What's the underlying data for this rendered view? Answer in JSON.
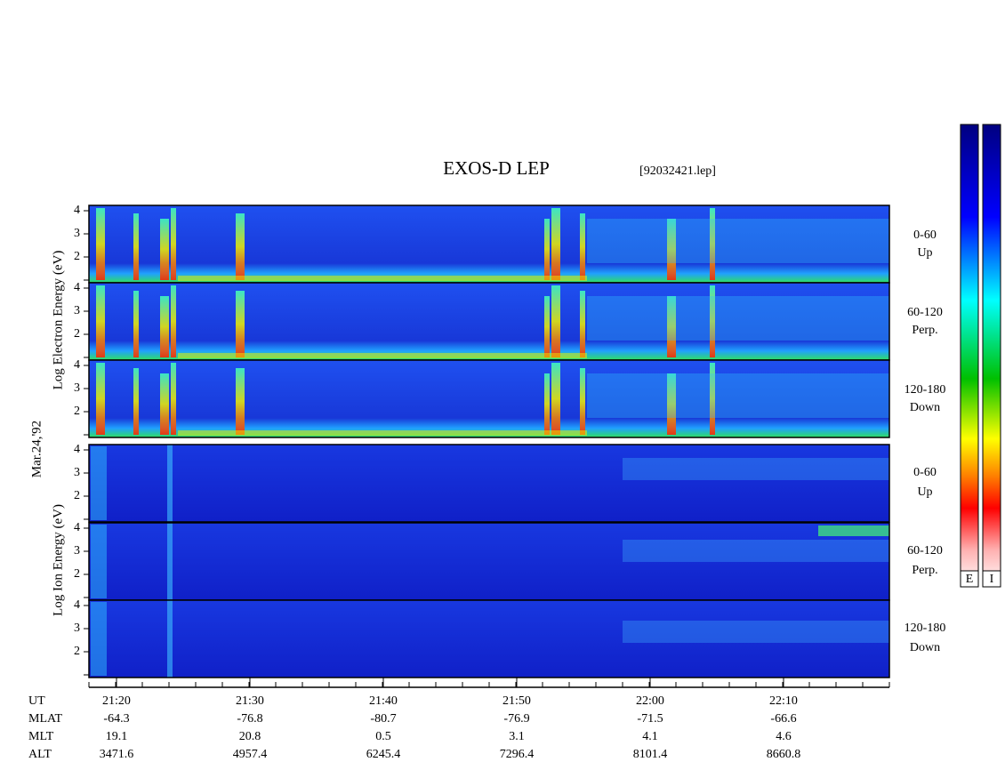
{
  "title": "EXOS-D LEP",
  "file": "[92032421.lep]",
  "date": "Mar.24,'92",
  "electron": {
    "axis_label": "Log Electron Energy (eV)",
    "panels": [
      {
        "pitch_angle": "0-60",
        "direction": "Up"
      },
      {
        "pitch_angle": "60-120",
        "direction": "Perp."
      },
      {
        "pitch_angle": "120-180",
        "direction": "Down"
      }
    ]
  },
  "ion": {
    "axis_label": "Log Ion Energy (eV)",
    "panels": [
      {
        "pitch_angle": "0-60",
        "direction": "Up"
      },
      {
        "pitch_angle": "60-120",
        "direction": "Perp."
      },
      {
        "pitch_angle": "120-180",
        "direction": "Down"
      }
    ]
  },
  "energy_axis": {
    "ylim": [
      1,
      4
    ],
    "yticks": [
      2,
      3,
      4
    ]
  },
  "colorbars": [
    "E",
    "I"
  ],
  "ephemeris": {
    "row_labels": [
      "UT",
      "MLAT",
      "MLT",
      "ALT"
    ],
    "UT": [
      "21:20",
      "21:30",
      "21:40",
      "21:50",
      "22:00",
      "22:10"
    ],
    "MLAT": [
      -64.3,
      -76.8,
      -80.7,
      -76.9,
      -71.5,
      -66.6
    ],
    "MLT": [
      19.1,
      20.8,
      0.5,
      3.1,
      4.1,
      4.6
    ],
    "ALT": [
      3471.6,
      4957.4,
      6245.4,
      7296.4,
      8101.4,
      8660.8
    ]
  }
}
